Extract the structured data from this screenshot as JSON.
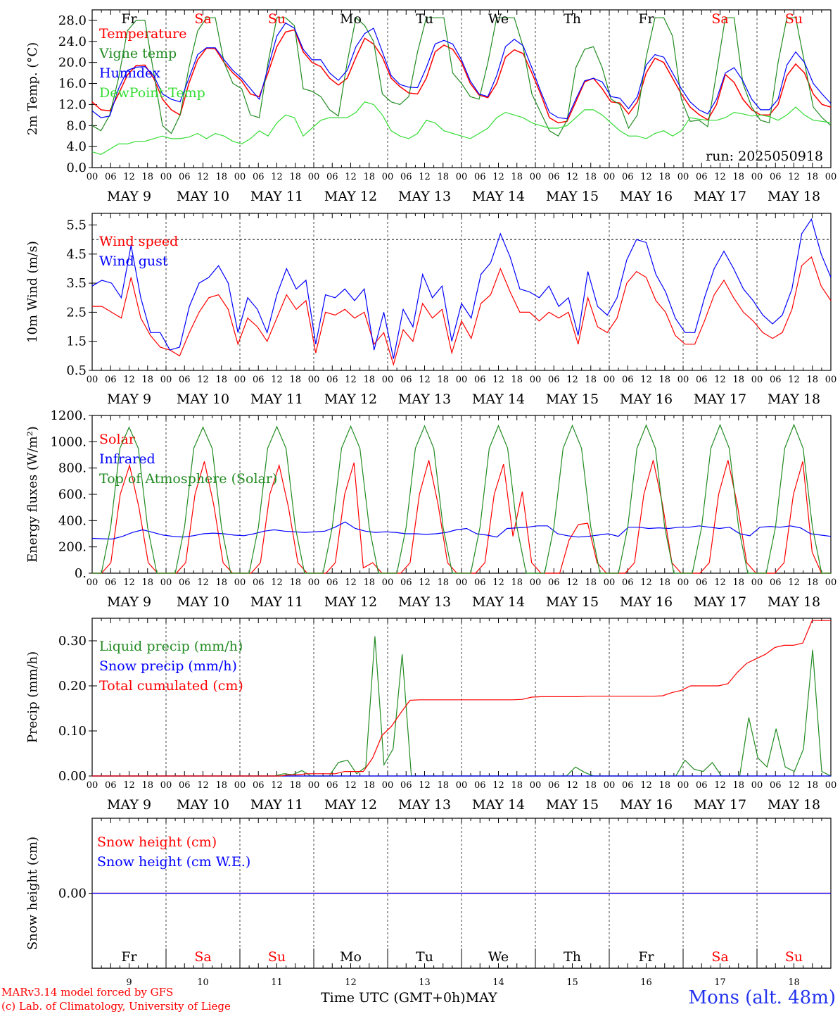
{
  "station": "Mons (alt. 48m)",
  "credits": [
    "MARv3.14 model forced by GFS",
    "(c) Lab. of Climatology, University of Liege"
  ],
  "xlabel": "Time UTC (GMT+0h)",
  "xlabel_month": "MAY",
  "hour_ticks": [
    "00",
    "06",
    "12",
    "18"
  ],
  "hour_end": "00",
  "date_labels": [
    "MAY  9",
    "MAY 10",
    "MAY 11",
    "MAY 12",
    "MAY 13",
    "MAY 14",
    "MAY 15",
    "MAY 16",
    "MAY 17",
    "MAY 18"
  ],
  "weekdays": [
    "Fr",
    "Sa",
    "Su",
    "Mo",
    "Tu",
    "We",
    "Th",
    "Fr",
    "Sa",
    "Su"
  ],
  "weekend_flags": [
    false,
    true,
    true,
    false,
    false,
    false,
    false,
    false,
    true,
    true
  ],
  "day_numbers": [
    "9",
    "10",
    "11",
    "12",
    "13",
    "14",
    "15",
    "16",
    "17",
    "18"
  ],
  "colors": {
    "red": "#ff0000",
    "dark_green": "#228b22",
    "blue": "#0000ff",
    "light_green": "#33dd33",
    "station_blue": "#2233ee"
  },
  "chart_data": [
    {
      "type": "line",
      "ylabel": "2m Temp. (°C)",
      "ylim": [
        0,
        30
      ],
      "yticks": [
        "0.0",
        "4.0",
        "8.0",
        "12.0",
        "16.0",
        "20.0",
        "24.0",
        "28.0"
      ],
      "run_label": "run: 2025050918",
      "x_unit": "hours since May 9 00 UTC (3-hourly)",
      "series": [
        {
          "name": "Temperature",
          "color": "#ff0000",
          "values": [
            12.5,
            11,
            10.8,
            14,
            17.6,
            19.4,
            19.5,
            17,
            13,
            11,
            10,
            16,
            20.5,
            22.7,
            22.6,
            20,
            18,
            16.5,
            14,
            13.5,
            18,
            23,
            25.8,
            26.2,
            22,
            20,
            19.2,
            17,
            15.7,
            17,
            21,
            24.6,
            23.5,
            21,
            17,
            15.4,
            14.2,
            14,
            17,
            22,
            23.3,
            22.5,
            20,
            16,
            13.8,
            13.3,
            16,
            21,
            22.4,
            21.7,
            18,
            14,
            9.5,
            8.5,
            8.8,
            12.5,
            16.3,
            17,
            15,
            12.5,
            12.3,
            10.2,
            12.5,
            18,
            20.8,
            20,
            17,
            14,
            11.5,
            10.1,
            9.1,
            12,
            17.7,
            16.2,
            13,
            11,
            10,
            10,
            12,
            17.5,
            19.7,
            18,
            14,
            12,
            11.5
          ]
        },
        {
          "name": "Vigne temp",
          "color": "#228b22",
          "values": [
            8,
            7,
            10,
            17,
            26,
            28,
            28,
            18,
            8,
            6.5,
            10,
            19,
            26,
            28.5,
            28.5,
            20,
            16,
            15,
            10,
            9.5,
            20,
            28.5,
            28.5,
            27,
            15,
            14.5,
            13.5,
            11,
            9.8,
            20,
            28.5,
            27,
            24,
            14,
            12.5,
            12,
            13.5,
            22,
            28.5,
            28.5,
            28.5,
            18,
            16,
            13.5,
            13,
            20,
            28.5,
            28.5,
            28.5,
            23,
            14,
            10.5,
            7,
            6,
            9,
            19,
            22.5,
            23,
            19,
            13,
            12,
            7.5,
            10,
            21,
            28.5,
            28.5,
            25,
            13,
            8.8,
            9,
            7.8,
            18,
            28.5,
            28.5,
            16,
            11.5,
            9,
            8.5,
            20,
            28.5,
            28.5,
            20,
            11.5,
            9.5,
            8
          ]
        },
        {
          "name": "Humidex",
          "color": "#0000ff",
          "values": [
            10.8,
            9.5,
            9.8,
            15,
            18.5,
            19.1,
            19.2,
            17.5,
            14,
            13,
            12.5,
            17,
            21.5,
            22.8,
            22.8,
            20.5,
            18.5,
            17,
            15,
            13,
            19,
            25,
            27.5,
            26.5,
            22.5,
            20.5,
            20.5,
            18,
            16.6,
            18.5,
            23,
            25.5,
            26.5,
            22,
            17.5,
            15.8,
            15.3,
            15.2,
            19,
            23.5,
            24.2,
            23.5,
            20.5,
            16.5,
            14,
            13.5,
            17.5,
            23,
            24.4,
            23.2,
            19,
            14.5,
            10.5,
            9.5,
            9.3,
            13,
            16.5,
            17,
            16.3,
            13.5,
            13.2,
            11.2,
            13.5,
            19.5,
            21.5,
            21,
            18,
            15,
            12.5,
            11,
            10.2,
            13,
            18,
            19,
            16.5,
            13,
            11,
            11,
            13,
            19.5,
            22,
            20,
            16,
            14,
            12.2
          ]
        },
        {
          "name": "DewPoint Temp",
          "color": "#33dd33",
          "values": [
            3,
            2.5,
            3.5,
            4.5,
            4.5,
            5,
            5,
            5.5,
            6,
            5.5,
            5.5,
            5.8,
            6.5,
            5.5,
            6.5,
            6,
            5,
            4.5,
            5.5,
            7,
            6,
            8.5,
            10,
            9.5,
            6,
            7.5,
            9,
            9.5,
            9.5,
            9.5,
            10.5,
            12.5,
            12,
            10,
            7,
            6,
            5.5,
            6.5,
            9,
            8.5,
            7,
            6.5,
            6,
            5.5,
            6.5,
            7.5,
            9.5,
            10.5,
            10,
            9.5,
            8.5,
            8,
            7.5,
            7.5,
            8,
            9.5,
            11,
            11,
            10,
            8.5,
            7,
            6,
            6,
            5.5,
            6.5,
            7,
            6,
            7,
            9.5,
            9.2,
            9,
            9,
            9.5,
            10.5,
            10.2,
            9.8,
            10,
            9.7,
            9,
            10,
            11.5,
            10,
            9,
            8.8,
            8.5
          ]
        }
      ],
      "legend_placement": "left"
    },
    {
      "type": "line",
      "ylabel": "10m Wind (m/s)",
      "ylim": [
        0.5,
        5.9
      ],
      "yticks": [
        "0.5",
        "1.5",
        "2.5",
        "3.5",
        "4.5",
        "5.5"
      ],
      "reference_line": 5.0,
      "x_unit": "hours since May 9 00 UTC (3-hourly)",
      "series": [
        {
          "name": "Wind speed",
          "color": "#ff0000",
          "values": [
            2.7,
            2.7,
            2.5,
            2.3,
            3.7,
            2.3,
            1.7,
            1.3,
            1.2,
            1.0,
            1.8,
            2.5,
            3.0,
            3.1,
            2.6,
            1.4,
            2.3,
            2.0,
            1.5,
            2.3,
            3.1,
            2.6,
            2.9,
            1.1,
            2.5,
            2.4,
            2.6,
            2.3,
            2.5,
            1.4,
            1.8,
            0.7,
            1.9,
            1.5,
            2.8,
            2.3,
            2.6,
            1.1,
            2.2,
            1.6,
            2.8,
            3.1,
            4.0,
            3.2,
            2.5,
            2.5,
            2.2,
            2.5,
            2.3,
            2.5,
            1.4,
            3.0,
            2.0,
            1.8,
            2.3,
            3.5,
            3.9,
            3.7,
            2.9,
            2.5,
            1.7,
            1.4,
            1.4,
            2.2,
            3.1,
            3.6,
            3.0,
            2.5,
            2.2,
            1.8,
            1.6,
            1.8,
            2.6,
            4.1,
            4.4,
            3.4,
            2.9
          ]
        },
        {
          "name": "Wind gust",
          "color": "#0000ff",
          "values": [
            3.4,
            3.6,
            3.5,
            3.0,
            4.8,
            3.0,
            1.8,
            1.8,
            1.2,
            1.3,
            2.7,
            3.5,
            3.7,
            4.1,
            3.5,
            1.8,
            3.0,
            2.6,
            1.8,
            3.1,
            4.0,
            3.3,
            3.6,
            1.4,
            3.1,
            3.0,
            3.3,
            2.9,
            3.3,
            1.2,
            2.5,
            0.9,
            2.6,
            2.0,
            3.8,
            3.0,
            3.4,
            1.5,
            2.8,
            2.3,
            3.8,
            4.2,
            5.2,
            4.4,
            3.3,
            3.2,
            3.0,
            3.4,
            2.7,
            3.0,
            1.7,
            3.9,
            2.7,
            2.4,
            3.0,
            4.3,
            5.0,
            4.9,
            3.8,
            3.2,
            2.3,
            1.8,
            1.8,
            3.0,
            4.0,
            4.6,
            4.0,
            3.3,
            2.9,
            2.4,
            2.1,
            2.4,
            3.3,
            5.2,
            5.7,
            4.5,
            3.7
          ]
        }
      ],
      "legend_placement": "left"
    },
    {
      "type": "line",
      "ylabel": "Energy fluxes (W/m²)",
      "ylim": [
        0,
        1200
      ],
      "yticks": [
        "0.",
        "200.",
        "400.",
        "600.",
        "800.",
        "1000.",
        "1200."
      ],
      "x_unit": "hours since May 9 00 UTC (3-hourly)",
      "series": [
        {
          "name": "Solar",
          "color": "#ff0000",
          "values": [
            0,
            0,
            80,
            600,
            820,
            500,
            80,
            0,
            0,
            0,
            80,
            600,
            850,
            520,
            80,
            0,
            0,
            0,
            80,
            600,
            820,
            500,
            80,
            0,
            0,
            0,
            80,
            600,
            840,
            40,
            80,
            0,
            0,
            0,
            80,
            600,
            860,
            520,
            80,
            0,
            0,
            0,
            80,
            600,
            830,
            280,
            620,
            80,
            0,
            0,
            0,
            250,
            370,
            380,
            80,
            0,
            0,
            0,
            80,
            600,
            860,
            520,
            80,
            0,
            0,
            0,
            80,
            600,
            860,
            520,
            80,
            0,
            0,
            0,
            80,
            600,
            850,
            160,
            0,
            0
          ]
        },
        {
          "name": "Infrared",
          "color": "#0000ff",
          "values": [
            265,
            262,
            260,
            280,
            310,
            330,
            310,
            290,
            280,
            275,
            285,
            300,
            305,
            300,
            290,
            285,
            300,
            320,
            330,
            320,
            315,
            310,
            315,
            320,
            350,
            390,
            340,
            320,
            310,
            315,
            310,
            300,
            300,
            295,
            300,
            310,
            330,
            340,
            300,
            290,
            275,
            340,
            345,
            350,
            360,
            360,
            300,
            285,
            275,
            280,
            290,
            300,
            280,
            350,
            350,
            340,
            345,
            340,
            350,
            350,
            360,
            350,
            340,
            350,
            300,
            285,
            350,
            355,
            350,
            360,
            345,
            300,
            290,
            280
          ]
        },
        {
          "name": "Top of Atmosphere (Solar)",
          "color": "#228b22",
          "values": [
            0,
            0,
            350,
            950,
            1110,
            950,
            350,
            0,
            0,
            0,
            350,
            950,
            1110,
            950,
            350,
            0,
            0,
            0,
            350,
            950,
            1115,
            950,
            350,
            0,
            0,
            0,
            350,
            950,
            1118,
            950,
            350,
            0,
            0,
            0,
            350,
            950,
            1120,
            950,
            350,
            0,
            0,
            0,
            350,
            950,
            1122,
            950,
            350,
            0,
            0,
            0,
            350,
            950,
            1124,
            950,
            350,
            0,
            0,
            0,
            350,
            950,
            1126,
            950,
            350,
            0,
            0,
            0,
            350,
            950,
            1128,
            950,
            350,
            0,
            0,
            0,
            350,
            950,
            1130,
            950,
            350,
            0,
            0
          ]
        }
      ],
      "legend_placement": "left"
    },
    {
      "type": "line",
      "ylabel": "Precip (mm/h)",
      "ylim": [
        0,
        0.35
      ],
      "yticks": [
        "0.00",
        "0.10",
        "0.20",
        "0.30"
      ],
      "x_unit": "hours since May 9 00 UTC (3-hourly)",
      "series": [
        {
          "name": "Liquid precip (mm/h)",
          "color": "#228b22",
          "values": [
            0,
            0,
            0,
            0,
            0,
            0,
            0,
            0,
            0,
            0,
            0,
            0,
            0,
            0,
            0,
            0,
            0,
            0,
            0,
            0,
            0,
            0.005,
            0.003,
            0.012,
            0,
            0,
            0,
            0.03,
            0.035,
            0.005,
            0.02,
            0.31,
            0.025,
            0.06,
            0.27,
            0,
            0,
            0,
            0,
            0,
            0,
            0,
            0,
            0,
            0,
            0,
            0,
            0,
            0,
            0,
            0,
            0,
            0,
            0.02,
            0.008,
            0,
            0,
            0,
            0,
            0,
            0,
            0,
            0,
            0,
            0,
            0.035,
            0.015,
            0.01,
            0.03,
            0,
            0,
            0,
            0.13,
            0.04,
            0.02,
            0.105,
            0.02,
            0.01,
            0.06,
            0.28,
            0.01,
            0
          ]
        },
        {
          "name": "Snow precip (mm/h)",
          "color": "#0000ff",
          "values": [
            0,
            0
          ]
        },
        {
          "name": "Total cumulated (cm)",
          "color": "#ff0000",
          "values": [
            0,
            0,
            0,
            0,
            0,
            0,
            0,
            0,
            0,
            0,
            0,
            0,
            0,
            0,
            0,
            0,
            0,
            0,
            0,
            0,
            0,
            0.002,
            0.003,
            0.005,
            0.005,
            0.005,
            0.005,
            0.01,
            0.01,
            0.01,
            0.04,
            0.09,
            0.11,
            0.14,
            0.168,
            0.169,
            0.169,
            0.169,
            0.169,
            0.169,
            0.169,
            0.169,
            0.169,
            0.169,
            0.169,
            0.169,
            0.17,
            0.175,
            0.176,
            0.176,
            0.176,
            0.176,
            0.176,
            0.177,
            0.177,
            0.177,
            0.177,
            0.177,
            0.177,
            0.177,
            0.177,
            0.178,
            0.185,
            0.19,
            0.2,
            0.2,
            0.2,
            0.2,
            0.205,
            0.23,
            0.25,
            0.26,
            0.27,
            0.285,
            0.29,
            0.29,
            0.295,
            0.345,
            0.345,
            0.345
          ]
        }
      ],
      "legend_placement": "left"
    },
    {
      "type": "line",
      "ylabel": "Snow height (cm)",
      "ylim": [
        -1,
        1
      ],
      "yticks": [
        "0.00"
      ],
      "x_unit": "hours since May 9 00 UTC (3-hourly)",
      "series": [
        {
          "name": "Snow height (cm)",
          "color": "#ff0000",
          "values": [
            0,
            0
          ]
        },
        {
          "name": "Snow height (cm W.E.)",
          "color": "#0000ff",
          "values": [
            0,
            0
          ]
        }
      ],
      "legend_placement": "left"
    }
  ]
}
